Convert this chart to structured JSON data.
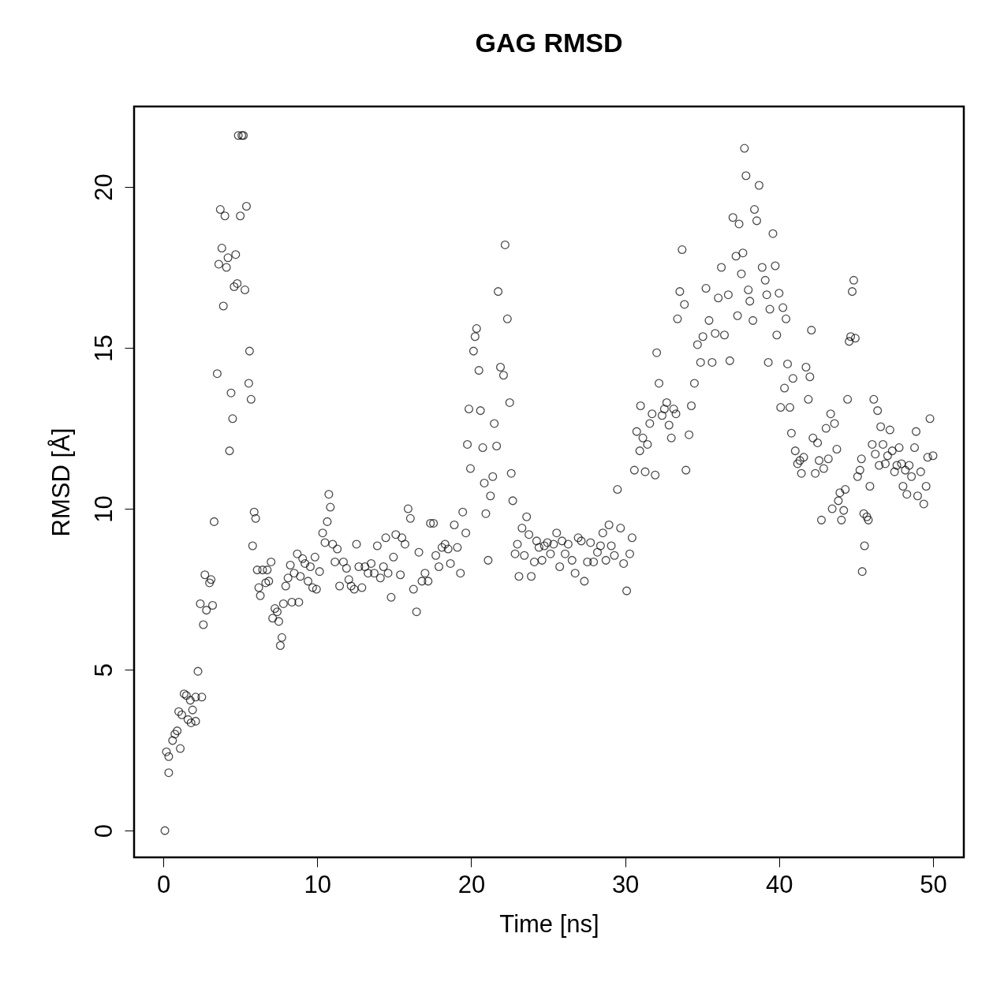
{
  "chart_data": {
    "type": "scatter",
    "title": "GAG RMSD",
    "xlabel": "Time [ns]",
    "ylabel": "RMSD [Å]",
    "xlim": [
      -1.9,
      52
    ],
    "ylim": [
      -0.83,
      22.5
    ],
    "xticks": [
      0,
      10,
      20,
      30,
      40,
      50
    ],
    "yticks": [
      0,
      5,
      10,
      15,
      20
    ],
    "grid": false,
    "marker": "circle",
    "series": [
      {
        "color": "#000000",
        "x": [
          0.1,
          0.2,
          0.35,
          0.35,
          0.6,
          0.75,
          0.9,
          1.0,
          1.1,
          1.2,
          1.35,
          1.5,
          1.6,
          1.75,
          1.8,
          1.9,
          2.1,
          2.1,
          2.25,
          2.4,
          2.5,
          2.6,
          2.7,
          2.8,
          3.0,
          3.1,
          3.2,
          3.3,
          3.5,
          3.6,
          3.7,
          3.8,
          3.9,
          4.0,
          4.1,
          4.2,
          4.3,
          4.4,
          4.5,
          4.6,
          4.7,
          4.8,
          4.87,
          5.0,
          5.1,
          5.2,
          5.3,
          5.4,
          5.55,
          5.6,
          5.7,
          5.8,
          5.9,
          6.0,
          6.1,
          6.2,
          6.3,
          6.45,
          6.65,
          6.75,
          6.85,
          7.0,
          7.1,
          7.25,
          7.4,
          7.5,
          7.6,
          7.7,
          7.8,
          7.95,
          8.1,
          8.25,
          8.35,
          8.5,
          8.7,
          8.8,
          8.9,
          9.05,
          9.2,
          9.4,
          9.55,
          9.7,
          9.85,
          9.95,
          10.15,
          10.35,
          10.5,
          10.65,
          10.75,
          10.85,
          11.0,
          11.15,
          11.3,
          11.45,
          11.7,
          11.9,
          12.05,
          12.2,
          12.4,
          12.55,
          12.7,
          12.9,
          13.1,
          13.3,
          13.5,
          13.7,
          13.9,
          14.1,
          14.3,
          14.45,
          14.6,
          14.8,
          14.95,
          15.1,
          15.4,
          15.5,
          15.7,
          15.9,
          16.05,
          16.25,
          16.45,
          16.6,
          16.8,
          17.0,
          17.2,
          17.35,
          17.55,
          17.7,
          17.9,
          18.1,
          18.3,
          18.5,
          18.65,
          18.9,
          19.1,
          19.3,
          19.45,
          19.65,
          19.75,
          19.85,
          19.95,
          20.15,
          20.25,
          20.35,
          20.5,
          20.6,
          20.75,
          20.85,
          20.95,
          21.1,
          21.25,
          21.4,
          21.5,
          21.65,
          21.75,
          21.9,
          22.1,
          22.2,
          22.35,
          22.5,
          22.6,
          22.7,
          22.85,
          23.0,
          23.1,
          23.3,
          23.45,
          23.6,
          23.75,
          23.9,
          24.1,
          24.25,
          24.4,
          24.6,
          24.75,
          24.95,
          25.15,
          25.35,
          25.55,
          25.75,
          25.9,
          26.1,
          26.3,
          26.55,
          26.75,
          26.95,
          27.15,
          27.35,
          27.55,
          27.75,
          27.95,
          28.2,
          28.4,
          28.55,
          28.75,
          28.95,
          29.1,
          29.3,
          29.5,
          29.7,
          29.9,
          30.1,
          30.3,
          30.45,
          30.6,
          30.75,
          30.95,
          31.0,
          31.15,
          31.3,
          31.45,
          31.6,
          31.75,
          31.95,
          32.05,
          32.2,
          32.4,
          32.55,
          32.7,
          32.85,
          33.0,
          33.15,
          33.3,
          33.4,
          33.55,
          33.7,
          33.85,
          33.95,
          34.15,
          34.3,
          34.5,
          34.7,
          34.9,
          35.05,
          35.25,
          35.45,
          35.65,
          35.85,
          36.05,
          36.25,
          36.45,
          36.7,
          36.8,
          37.0,
          37.2,
          37.3,
          37.4,
          37.55,
          37.65,
          37.75,
          37.85,
          38.0,
          38.1,
          38.3,
          38.4,
          38.55,
          38.7,
          38.9,
          39.1,
          39.2,
          39.3,
          39.4,
          39.6,
          39.75,
          39.85,
          40.0,
          40.1,
          40.25,
          40.35,
          40.45,
          40.55,
          40.7,
          40.8,
          40.9,
          41.05,
          41.2,
          41.35,
          41.45,
          41.6,
          41.75,
          41.9,
          42.0,
          42.1,
          42.2,
          42.35,
          42.5,
          42.6,
          42.75,
          42.9,
          43.05,
          43.2,
          43.35,
          43.45,
          43.6,
          43.75,
          43.85,
          43.95,
          44.05,
          44.2,
          44.3,
          44.45,
          44.55,
          44.65,
          44.75,
          44.85,
          44.95,
          45.1,
          45.25,
          45.35,
          45.4,
          45.5,
          45.55,
          45.7,
          45.8,
          45.9,
          46.05,
          46.15,
          46.25,
          46.4,
          46.5,
          46.6,
          46.75,
          46.9,
          47.05,
          47.2,
          47.35,
          47.5,
          47.65,
          47.8,
          47.95,
          48.05,
          48.2,
          48.3,
          48.45,
          48.6,
          48.8,
          48.9,
          49.0,
          49.2,
          49.4,
          49.55,
          49.65,
          49.8,
          50.0
        ],
        "values": [
          0,
          2.45,
          2.3,
          1.8,
          2.8,
          3.0,
          3.1,
          3.7,
          2.55,
          3.6,
          4.25,
          4.2,
          3.45,
          4.05,
          3.35,
          3.75,
          4.15,
          3.4,
          4.95,
          7.05,
          4.15,
          6.4,
          7.95,
          6.85,
          7.7,
          7.8,
          7.0,
          9.6,
          14.2,
          17.6,
          19.3,
          18.1,
          16.3,
          19.1,
          17.5,
          17.8,
          11.8,
          13.6,
          12.8,
          16.9,
          17.9,
          17.0,
          21.6,
          19.1,
          21.6,
          21.6,
          16.8,
          19.4,
          13.9,
          14.9,
          13.4,
          8.85,
          9.9,
          9.7,
          8.1,
          7.55,
          7.3,
          8.1,
          7.7,
          8.1,
          7.75,
          8.35,
          6.6,
          6.9,
          6.8,
          6.5,
          5.75,
          6.0,
          7.05,
          7.6,
          7.85,
          8.25,
          7.1,
          8.0,
          8.6,
          7.1,
          7.9,
          8.45,
          8.3,
          7.75,
          8.2,
          7.55,
          8.5,
          7.5,
          8.05,
          9.25,
          8.95,
          9.6,
          10.45,
          10.05,
          8.9,
          8.35,
          8.75,
          7.6,
          8.35,
          8.15,
          7.8,
          7.6,
          7.5,
          8.9,
          8.2,
          7.55,
          8.2,
          8.0,
          8.3,
          8.0,
          8.85,
          7.85,
          8.2,
          9.1,
          8.0,
          7.25,
          8.5,
          9.2,
          7.95,
          9.1,
          8.9,
          10.0,
          9.7,
          7.5,
          6.8,
          8.65,
          7.75,
          8.0,
          7.75,
          9.55,
          9.55,
          8.55,
          8.2,
          8.8,
          8.9,
          8.75,
          8.3,
          9.5,
          8.8,
          8.0,
          9.9,
          9.25,
          12.0,
          13.1,
          11.25,
          14.9,
          15.35,
          15.6,
          14.3,
          13.05,
          11.9,
          10.8,
          9.85,
          8.4,
          10.4,
          11.0,
          12.65,
          11.95,
          16.75,
          14.4,
          14.15,
          18.2,
          15.9,
          13.3,
          11.1,
          10.25,
          8.6,
          8.9,
          7.9,
          9.4,
          8.55,
          9.75,
          9.2,
          7.9,
          8.35,
          9.0,
          8.8,
          8.4,
          8.85,
          8.95,
          8.6,
          8.9,
          9.25,
          8.2,
          9.0,
          8.6,
          8.9,
          8.4,
          8.0,
          9.1,
          9.0,
          7.75,
          8.35,
          8.95,
          8.35,
          8.65,
          8.85,
          9.25,
          8.4,
          9.5,
          8.85,
          8.55,
          10.6,
          9.4,
          8.3,
          7.45,
          8.6,
          9.1,
          11.2,
          12.4,
          11.8,
          13.2,
          12.2,
          11.15,
          12.0,
          12.65,
          12.95,
          11.05,
          14.85,
          13.9,
          12.9,
          13.1,
          13.3,
          12.6,
          12.2,
          13.1,
          12.95,
          15.9,
          16.75,
          18.05,
          16.35,
          11.2,
          12.3,
          13.2,
          13.9,
          15.1,
          14.55,
          15.35,
          16.85,
          15.85,
          14.55,
          15.45,
          16.55,
          17.5,
          15.4,
          16.65,
          14.6,
          19.05,
          17.85,
          16.0,
          18.85,
          17.3,
          17.95,
          21.2,
          20.35,
          16.8,
          16.45,
          15.85,
          19.3,
          18.95,
          20.05,
          17.5,
          17.1,
          16.65,
          14.55,
          16.2,
          18.55,
          17.55,
          15.4,
          16.7,
          13.15,
          16.25,
          13.75,
          15.9,
          14.5,
          13.15,
          12.35,
          14.05,
          11.8,
          11.4,
          11.5,
          11.1,
          11.6,
          14.4,
          13.4,
          14.1,
          15.55,
          12.2,
          11.1,
          12.05,
          11.5,
          9.65,
          11.25,
          12.5,
          11.55,
          12.95,
          10.0,
          12.65,
          11.85,
          10.25,
          10.5,
          9.65,
          9.95,
          10.6,
          13.4,
          15.2,
          15.35,
          16.75,
          17.1,
          15.3,
          11.0,
          11.2,
          11.55,
          8.05,
          9.85,
          8.85,
          9.75,
          9.65,
          10.7,
          12.0,
          13.4,
          11.7,
          13.05,
          11.35,
          12.55,
          12.0,
          11.4,
          11.65,
          12.45,
          11.8,
          11.15,
          11.35,
          11.9,
          11.4,
          10.7,
          11.2,
          10.45,
          11.35,
          11.0,
          11.9,
          12.4,
          10.4,
          11.15,
          10.15,
          10.7,
          11.6,
          12.8,
          11.65
        ]
      }
    ]
  }
}
